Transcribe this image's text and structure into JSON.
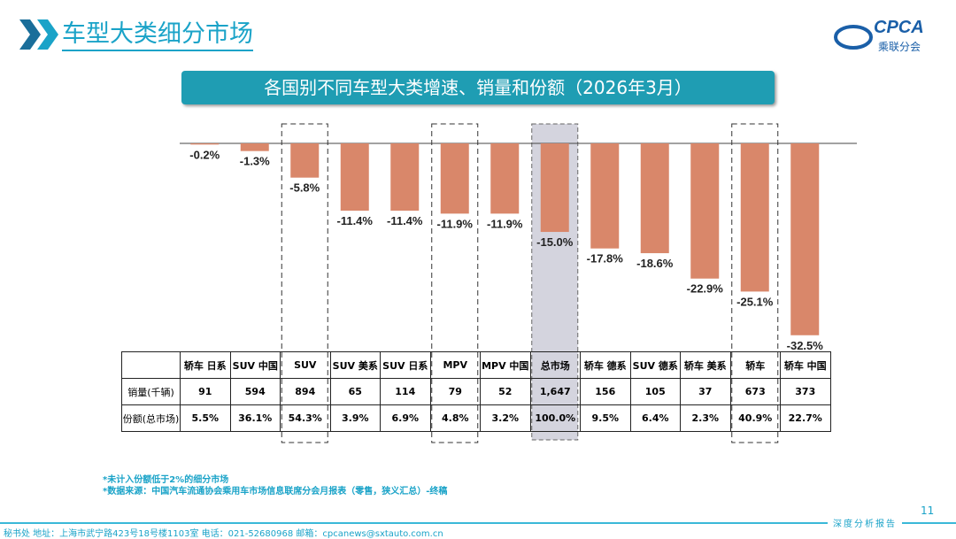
{
  "header": {
    "title": "车型大类细分市场",
    "logo_text": "CPCA",
    "logo_sub": "乘联分会"
  },
  "chart_data": {
    "type": "bar",
    "title": "各国别不同车型大类增速、销量和份额（2026年3月）",
    "categories": [
      "轿车 日系",
      "SUV 中国",
      "SUV",
      "SUV 美系",
      "SUV 日系",
      "MPV",
      "MPV 中国",
      "总市场",
      "轿车 德系",
      "SUV 德系",
      "轿车 美系",
      "轿车",
      "轿车 中国"
    ],
    "values": [
      -0.2,
      -1.3,
      -5.8,
      -11.4,
      -11.4,
      -11.9,
      -11.9,
      -15.0,
      -17.8,
      -18.6,
      -22.9,
      -25.1,
      -32.5
    ],
    "labels": [
      "-0.2%",
      "-1.3%",
      "-5.8%",
      "-11.4%",
      "-11.4%",
      "-11.9%",
      "-11.9%",
      "-15.0%",
      "-17.8%",
      "-18.6%",
      "-22.9%",
      "-25.1%",
      "-32.5%"
    ],
    "bar_color": "#d9876a",
    "highlight_dashed": [
      "SUV",
      "MPV",
      "轿车"
    ],
    "highlight_shaded": "总市场",
    "table": {
      "rows": [
        {
          "label": "销量(千辆)",
          "values": [
            "91",
            "594",
            "894",
            "65",
            "114",
            "79",
            "52",
            "1,647",
            "156",
            "105",
            "37",
            "673",
            "373"
          ]
        },
        {
          "label": "份额(总市场)",
          "values": [
            "5.5%",
            "36.1%",
            "54.3%",
            "3.9%",
            "6.9%",
            "4.8%",
            "3.2%",
            "100.0%",
            "9.5%",
            "6.4%",
            "2.3%",
            "40.9%",
            "22.7%"
          ]
        }
      ]
    }
  },
  "notes": [
    "*未计入份额低于2%的细分市场",
    "*数据来源：中国汽车流通协会乘用车市场信息联席分会月报表（零售，狭义汇总）-终稿"
  ],
  "footer": {
    "page": "11",
    "tag": "深度分析报告",
    "address": "秘书处  地址：上海市武宁路423号18号楼1103室  电话：021-52680968  邮箱：cpcanews@sxtauto.com.cn"
  }
}
